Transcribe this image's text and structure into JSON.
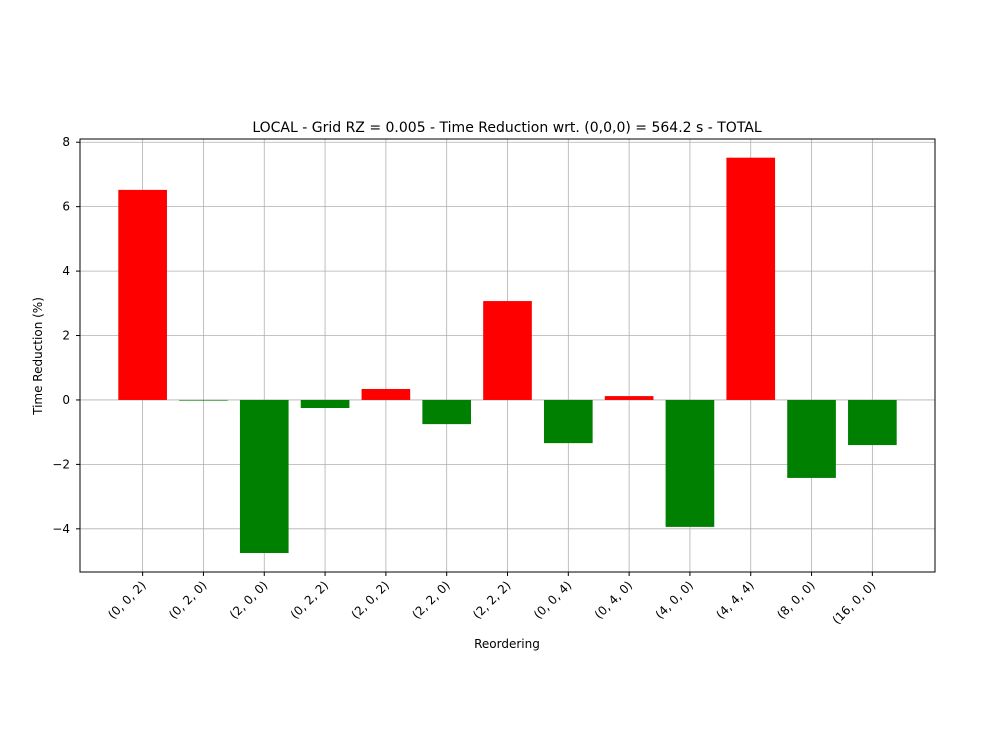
{
  "chart_data": {
    "type": "bar",
    "title": "LOCAL - Grid RZ = 0.005 - Time Reduction wrt. (0,0,0) = 564.2 s - TOTAL",
    "xlabel": "Reordering",
    "ylabel": "Time Reduction (%)",
    "categories": [
      "(0, 0, 2)",
      "(0, 2, 0)",
      "(2, 0, 0)",
      "(0, 2, 2)",
      "(2, 0, 2)",
      "(2, 2, 0)",
      "(2, 2, 2)",
      "(0, 0, 4)",
      "(0, 4, 0)",
      "(4, 0, 0)",
      "(4, 4, 4)",
      "(8, 0, 0)",
      "(16, 0, 0)"
    ],
    "values": [
      6.52,
      -0.02,
      -4.75,
      -0.25,
      0.34,
      -0.75,
      3.07,
      -1.34,
      0.12,
      -3.94,
      7.52,
      -2.42,
      -1.4
    ],
    "colors": [
      "#ff0000",
      "#008000",
      "#008000",
      "#008000",
      "#ff0000",
      "#008000",
      "#ff0000",
      "#008000",
      "#ff0000",
      "#008000",
      "#ff0000",
      "#008000",
      "#008000"
    ],
    "ylim": [
      -5.34,
      8.1
    ],
    "yticks": [
      {
        "value": -4,
        "label": "−4"
      },
      {
        "value": -2,
        "label": "−2"
      },
      0,
      2,
      4,
      6,
      8
    ],
    "grid": true
  }
}
